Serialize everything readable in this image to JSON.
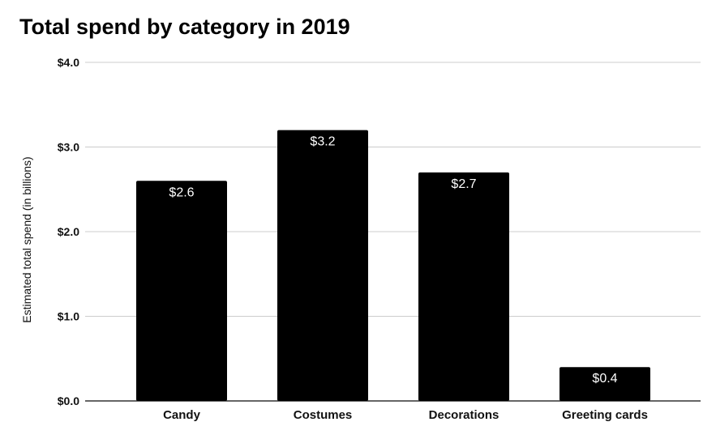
{
  "chart_data": {
    "type": "bar",
    "title": "Total spend by category in 2019",
    "xlabel": "",
    "ylabel": "Estimated total spend (in billions)",
    "categories": [
      "Candy",
      "Costumes",
      "Decorations",
      "Greeting cards"
    ],
    "values": [
      2.6,
      3.2,
      2.7,
      0.4
    ],
    "data_labels": [
      "$2.6",
      "$3.2",
      "$2.7",
      "$0.4"
    ],
    "yticks": [
      0,
      1,
      2,
      3,
      4
    ],
    "ytick_labels": [
      "$0.0",
      "$1.0",
      "$2.0",
      "$3.0",
      "$4.0"
    ],
    "ylim": [
      0,
      4
    ],
    "grid": true,
    "legend": "none",
    "colors": {
      "bar": "#000000",
      "grid": "#cccccc",
      "baseline": "#333333",
      "data_label": "#ffffff"
    }
  }
}
